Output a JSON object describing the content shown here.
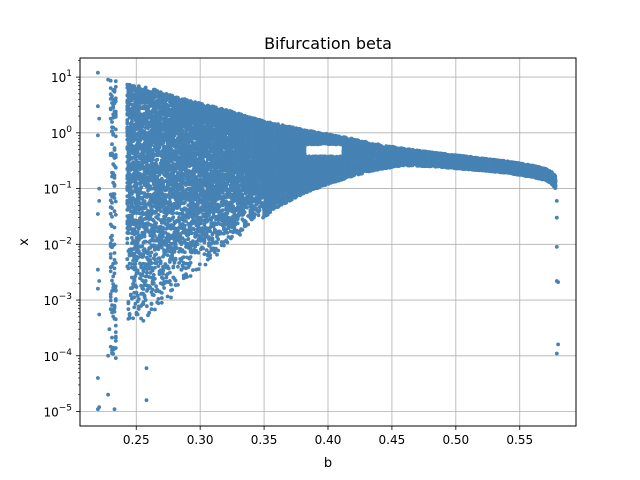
{
  "chart_data": {
    "type": "scatter",
    "title": "Bifurcation beta",
    "xlabel": "b",
    "ylabel": "x",
    "xlim": [
      0.206,
      0.594
    ],
    "ylim": [
      5.5e-06,
      22
    ],
    "yscale": "log",
    "grid": true,
    "point_color": "#4682b4",
    "x_ticks": [
      0.25,
      0.3,
      0.35,
      0.4,
      0.45,
      0.5,
      0.55
    ],
    "x_tick_labels": [
      "0.25",
      "0.30",
      "0.35",
      "0.40",
      "0.45",
      "0.50",
      "0.55"
    ],
    "y_ticks": [
      1e-05,
      0.0001,
      0.001,
      0.01,
      0.1,
      1,
      10
    ],
    "y_tick_labels": [
      {
        "base": "10",
        "exp": "−5"
      },
      {
        "base": "10",
        "exp": "−4"
      },
      {
        "base": "10",
        "exp": "−3"
      },
      {
        "base": "10",
        "exp": "−2"
      },
      {
        "base": "10",
        "exp": "−1"
      },
      {
        "base": "10",
        "exp": "0"
      },
      {
        "base": "10",
        "exp": "1"
      }
    ],
    "band_envelope": {
      "description_b": [
        0.243,
        0.26,
        0.28,
        0.3,
        0.32,
        0.34,
        0.36,
        0.38,
        0.4,
        0.42,
        0.44,
        0.46,
        0.48,
        0.5,
        0.52,
        0.54,
        0.56,
        0.57,
        0.575,
        0.578
      ],
      "upper_x": [
        7.5,
        6.5,
        4.5,
        3.4,
        2.6,
        1.9,
        1.45,
        1.15,
        0.95,
        0.78,
        0.62,
        0.52,
        0.45,
        0.4,
        0.35,
        0.31,
        0.26,
        0.23,
        0.2,
        0.17
      ],
      "lower_x": [
        0.00025,
        0.0004,
        0.0012,
        0.003,
        0.008,
        0.02,
        0.045,
        0.08,
        0.12,
        0.17,
        0.22,
        0.26,
        0.25,
        0.23,
        0.21,
        0.19,
        0.16,
        0.14,
        0.12,
        0.1
      ]
    },
    "isolated_points": [
      {
        "x": 0.22,
        "y": 12
      },
      {
        "x": 0.22,
        "y": 3.0
      },
      {
        "x": 0.221,
        "y": 1.8
      },
      {
        "x": 0.22,
        "y": 0.9
      },
      {
        "x": 0.221,
        "y": 0.1
      },
      {
        "x": 0.221,
        "y": 0.06
      },
      {
        "x": 0.22,
        "y": 0.035
      },
      {
        "x": 0.22,
        "y": 0.0035
      },
      {
        "x": 0.221,
        "y": 0.0022
      },
      {
        "x": 0.22,
        "y": 0.0016
      },
      {
        "x": 0.221,
        "y": 0.00055
      },
      {
        "x": 0.22,
        "y": 4e-05
      },
      {
        "x": 0.221,
        "y": 1.2e-05
      },
      {
        "x": 0.22,
        "y": 1.1e-05
      },
      {
        "x": 0.228,
        "y": 9
      },
      {
        "x": 0.228,
        "y": 2e-05
      },
      {
        "x": 0.228,
        "y": 0.0001
      },
      {
        "x": 0.229,
        "y": 0.0003
      },
      {
        "x": 0.233,
        "y": 1.1e-05
      },
      {
        "x": 0.258,
        "y": 1.6e-05
      },
      {
        "x": 0.258,
        "y": 6e-05
      },
      {
        "x": 0.579,
        "y": 0.009
      },
      {
        "x": 0.579,
        "y": 0.0022
      },
      {
        "x": 0.58,
        "y": 0.0021
      },
      {
        "x": 0.58,
        "y": 0.00016
      },
      {
        "x": 0.579,
        "y": 0.00011
      },
      {
        "x": 0.579,
        "y": 0.03
      },
      {
        "x": 0.579,
        "y": 0.06
      }
    ],
    "dense_column_b": [
      0.23,
      0.231,
      0.232,
      0.233,
      0.234
    ],
    "dense_column_range": [
      8e-05,
      9
    ]
  }
}
